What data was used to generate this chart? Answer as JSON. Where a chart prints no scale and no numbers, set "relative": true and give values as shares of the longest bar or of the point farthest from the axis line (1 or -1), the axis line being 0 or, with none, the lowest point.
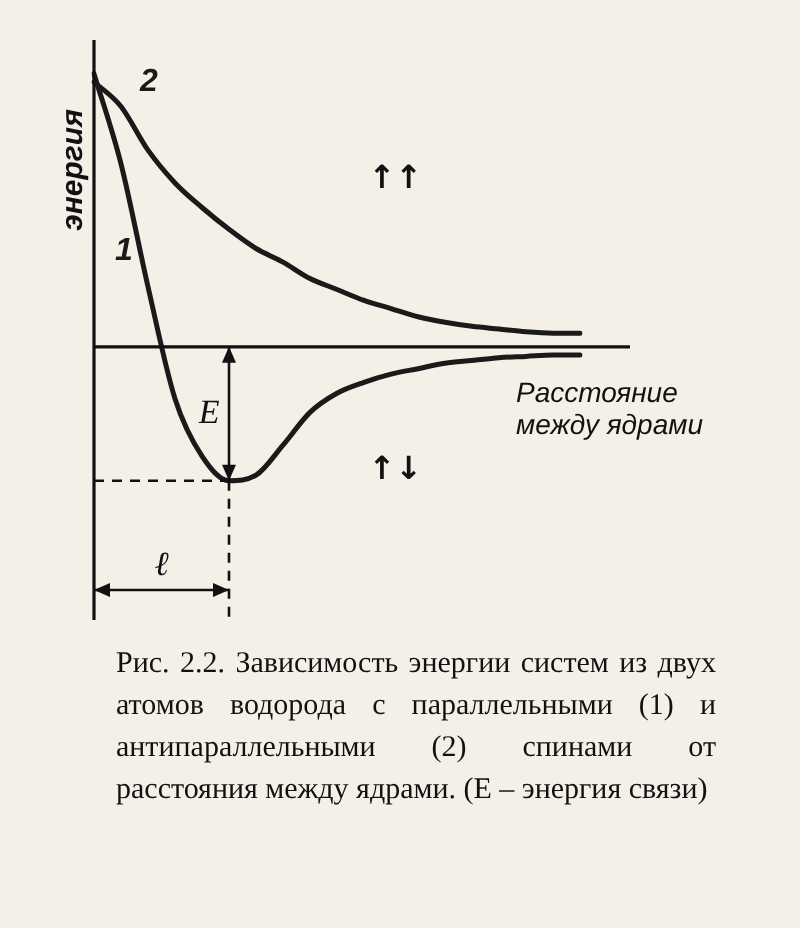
{
  "chart_data": {
    "type": "line",
    "relative": true,
    "xlabel": "Расстояние между ядрами",
    "ylabel": "энергия",
    "legend": false,
    "marker": "none",
    "line_style": "solid",
    "categories": [
      null,
      null,
      null,
      null,
      null,
      null,
      null,
      null,
      null,
      null,
      null,
      null,
      null,
      null,
      null,
      null,
      null,
      null,
      null
    ],
    "series": [
      {
        "name": "1",
        "color": "#1a1a1a",
        "values": [
          1,
          0.67,
          0.22,
          -0.19,
          -0.4,
          -0.49,
          -0.47,
          -0.36,
          -0.24,
          -0.17,
          -0.13,
          -0.1,
          -0.08,
          -0.06,
          -0.05,
          -0.04,
          -0.035,
          -0.03,
          -0.03
        ]
      },
      {
        "name": "2",
        "color": "#1a1a1a",
        "values": [
          0.97,
          0.88,
          0.72,
          0.6,
          0.51,
          0.43,
          0.36,
          0.31,
          0.25,
          0.21,
          0.17,
          0.14,
          0.11,
          0.09,
          0.075,
          0.065,
          0.055,
          0.05,
          0.05
        ]
      }
    ],
    "annotations": [
      "E",
      "ℓ",
      "↑↑",
      "↑↓",
      "Рис. 2.2. Зависимость энергии систем из двух атомов водорода с параллельными (1) и антипараллельными (2) спинами от расстояния между ядрами. (E – энергия связи)"
    ]
  }
}
